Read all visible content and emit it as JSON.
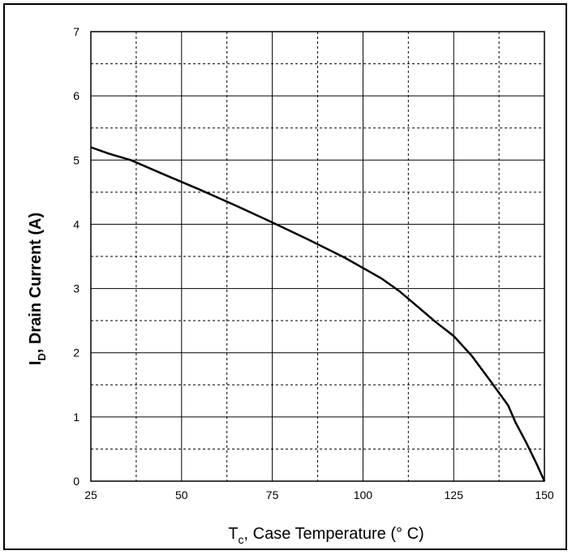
{
  "chart_data": {
    "type": "line",
    "title": "",
    "xlabel": {
      "main": "T",
      "sub": "c",
      "rest": ", Case Temperature (° C)"
    },
    "ylabel": {
      "main": "I",
      "sub": "D",
      "rest": ",  Drain Current (A)"
    },
    "xlim": [
      25,
      150
    ],
    "ylim": [
      0,
      7
    ],
    "x_ticks": [
      25,
      50,
      75,
      100,
      125,
      150
    ],
    "y_ticks": [
      0,
      1,
      2,
      3,
      4,
      5,
      6,
      7
    ],
    "grid": {
      "major": true,
      "minor_dashed": true
    },
    "series": [
      {
        "x": [
          25,
          30,
          36,
          45,
          55,
          65,
          75,
          85,
          95,
          105,
          110,
          115,
          120,
          125,
          130,
          135,
          140,
          142,
          145,
          148,
          150
        ],
        "y": [
          5.2,
          5.1,
          5.0,
          4.78,
          4.54,
          4.29,
          4.03,
          3.76,
          3.48,
          3.16,
          2.96,
          2.72,
          2.48,
          2.26,
          1.95,
          1.57,
          1.18,
          0.92,
          0.6,
          0.25,
          0.0
        ]
      }
    ]
  }
}
